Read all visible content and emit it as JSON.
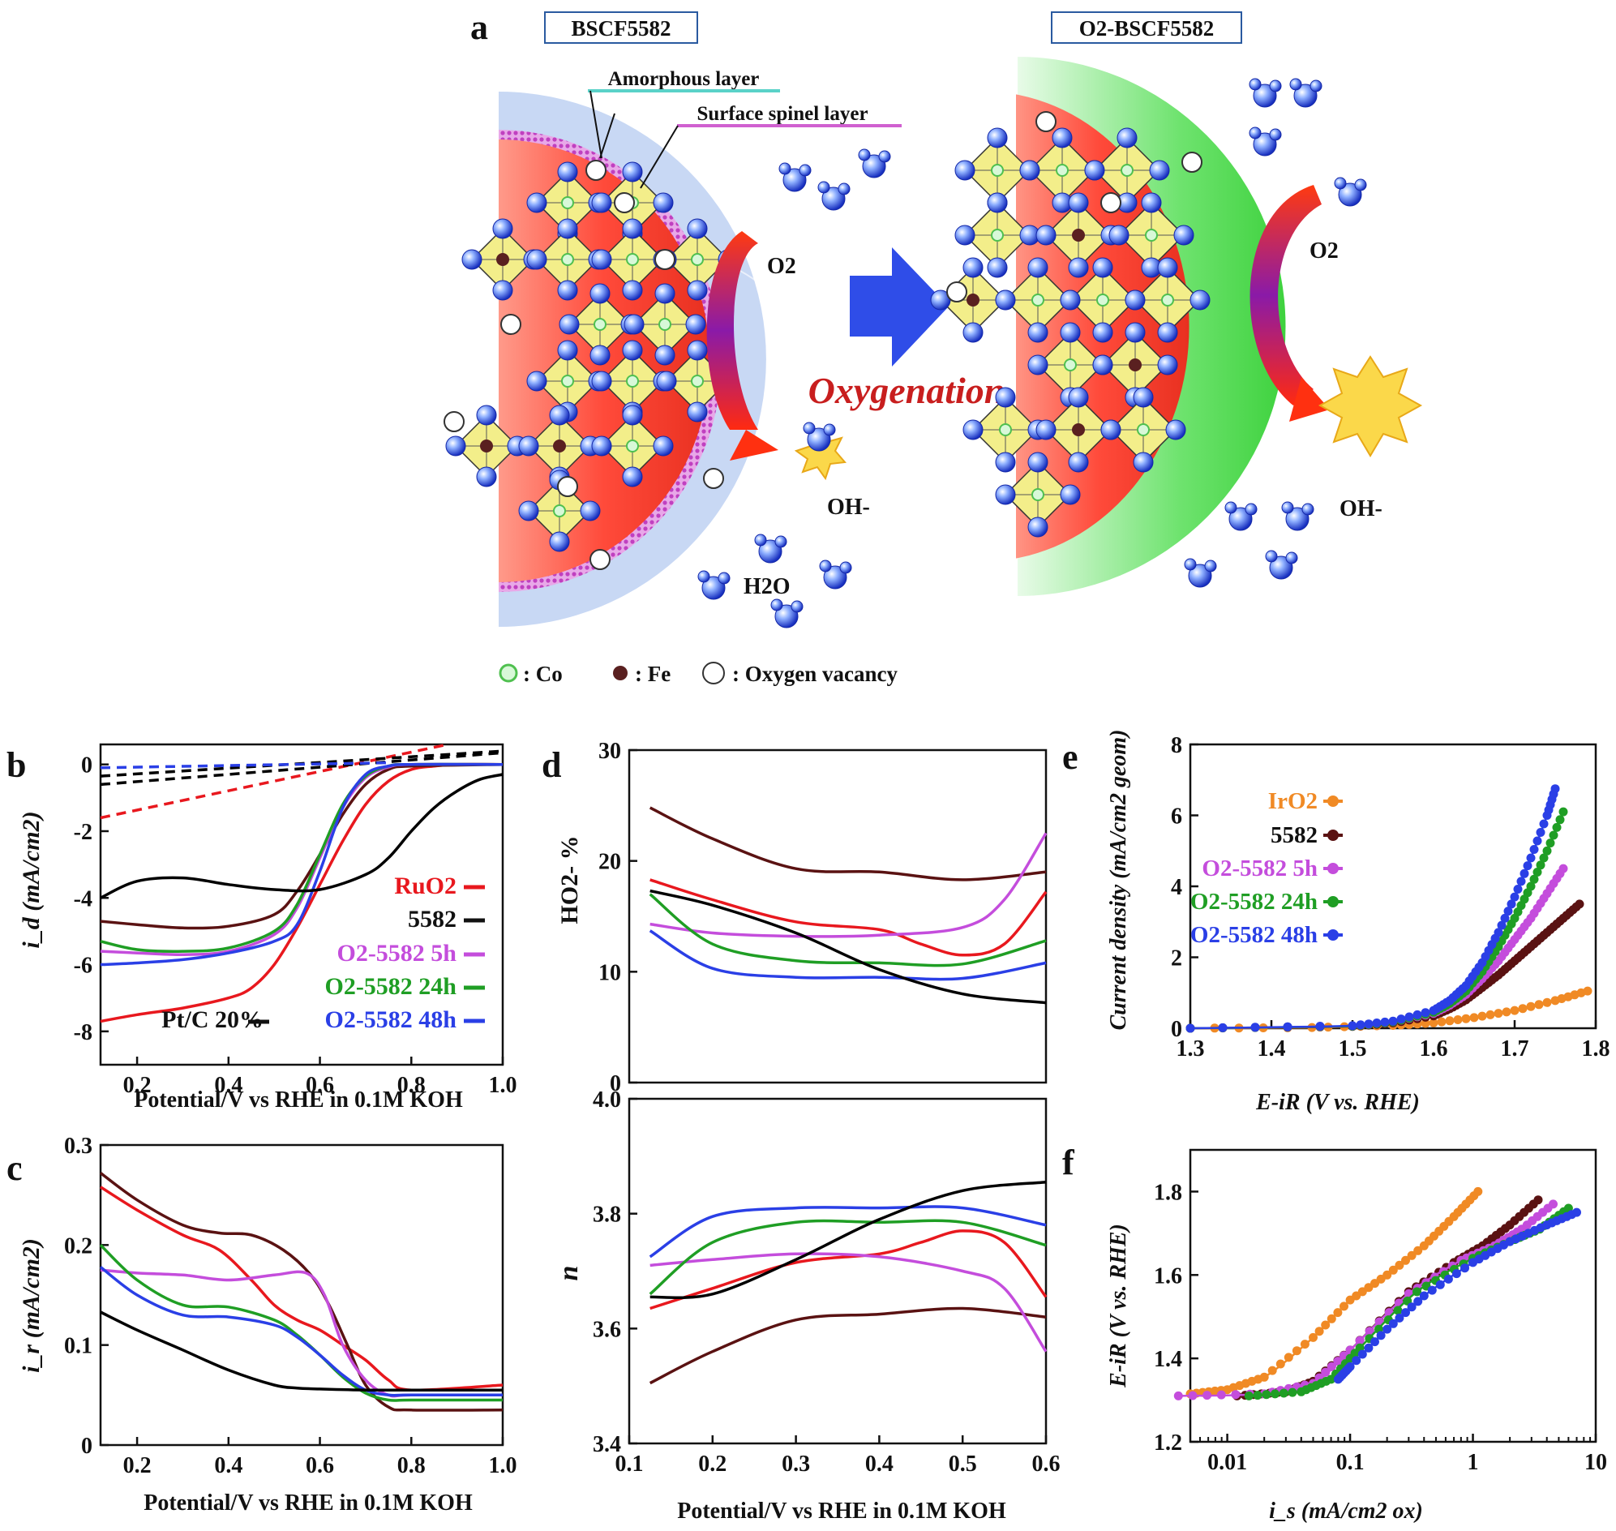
{
  "panel_letters": {
    "a": "a",
    "b": "b",
    "c": "c",
    "d": "d",
    "e": "e",
    "f": "f"
  },
  "schematic": {
    "left_title": "BSCF5582",
    "right_title": "O2-BSCF5582",
    "amorphous_layer": "Amorphous layer",
    "spinel_layer": "Surface spinel layer",
    "arrow_label": "Oxygenation",
    "o2": "O2",
    "oh": "OH-",
    "h2o": "H2O",
    "legend": {
      "co": ": Co",
      "fe": ": Fe",
      "vac": ": Oxygen vacancy"
    }
  },
  "colors": {
    "RuO2": "#e8181e",
    "5582": "#5a1212",
    "O2-5582 5h": "#c44ddc",
    "O2-5582 24h": "#1f9e24",
    "O2-5582 48h": "#2a3fe6",
    "Pt/C 20%": "#000000",
    "IrO2": "#f08a25"
  },
  "chart_data": [
    {
      "id": "b",
      "type": "line",
      "xlabel": "Potential/V vs RHE in 0.1M KOH",
      "ylabel": "i_d (mA/cm2)",
      "xlim": [
        0.12,
        1.0
      ],
      "ylim": [
        -9,
        0.6
      ],
      "xticks": [
        "0.2",
        "0.4",
        "0.6",
        "0.8",
        "1.0"
      ],
      "yticks": [
        "-8",
        "-6",
        "-4",
        "-2",
        "0"
      ],
      "legend": [
        "RuO2",
        "5582",
        "O2-5582 5h",
        "O2-5582 24h",
        "O2-5582 48h",
        "Pt/C 20%"
      ],
      "series": [
        {
          "name": "RuO2",
          "x": [
            0.12,
            0.2,
            0.3,
            0.4,
            0.45,
            0.5,
            0.55,
            0.6,
            0.65,
            0.7,
            0.75,
            0.8,
            0.85,
            0.9,
            1.0
          ],
          "y": [
            -7.7,
            -7.5,
            -7.3,
            -7.0,
            -6.7,
            -6.0,
            -4.9,
            -3.6,
            -2.3,
            -1.2,
            -0.5,
            -0.15,
            -0.05,
            0,
            0
          ]
        },
        {
          "name": "5582",
          "x": [
            0.12,
            0.2,
            0.3,
            0.4,
            0.5,
            0.55,
            0.6,
            0.65,
            0.7,
            0.75,
            0.8,
            1.0
          ],
          "y": [
            -4.7,
            -4.8,
            -4.9,
            -4.85,
            -4.5,
            -3.8,
            -2.7,
            -1.5,
            -0.6,
            -0.15,
            -0.05,
            0
          ]
        },
        {
          "name": "O2-5582 5h",
          "x": [
            0.12,
            0.2,
            0.3,
            0.4,
            0.5,
            0.55,
            0.6,
            0.65,
            0.7,
            0.75,
            0.8,
            1.0
          ],
          "y": [
            -5.6,
            -5.65,
            -5.7,
            -5.6,
            -5.1,
            -4.3,
            -2.8,
            -1.3,
            -0.4,
            -0.08,
            0,
            0
          ]
        },
        {
          "name": "O2-5582 24h",
          "x": [
            0.12,
            0.2,
            0.3,
            0.4,
            0.5,
            0.55,
            0.6,
            0.65,
            0.7,
            0.75,
            0.8,
            1.0
          ],
          "y": [
            -5.3,
            -5.55,
            -5.6,
            -5.5,
            -5.0,
            -4.2,
            -2.7,
            -1.2,
            -0.35,
            -0.05,
            0,
            0
          ]
        },
        {
          "name": "O2-5582 48h",
          "x": [
            0.12,
            0.2,
            0.3,
            0.4,
            0.5,
            0.55,
            0.6,
            0.65,
            0.7,
            0.75,
            0.8,
            1.0
          ],
          "y": [
            -6.0,
            -5.95,
            -5.85,
            -5.65,
            -5.3,
            -4.8,
            -3.2,
            -1.3,
            -0.3,
            -0.05,
            0,
            0
          ]
        },
        {
          "name": "Pt/C 20%",
          "x": [
            0.12,
            0.2,
            0.3,
            0.4,
            0.5,
            0.6,
            0.7,
            0.75,
            0.8,
            0.85,
            0.9,
            0.95,
            1.0
          ],
          "y": [
            -4.0,
            -3.5,
            -3.4,
            -3.6,
            -3.75,
            -3.75,
            -3.3,
            -2.8,
            -2.0,
            -1.3,
            -0.8,
            -0.45,
            -0.3
          ]
        }
      ],
      "dashed": [
        {
          "name": "RuO2",
          "x": [
            0.12,
            0.88
          ],
          "y": [
            -1.6,
            0.6
          ]
        },
        {
          "name": "Pt/C 20%",
          "x": [
            0.12,
            1.0
          ],
          "y": [
            -0.35,
            0.4
          ]
        },
        {
          "name": "Pt/C 20%",
          "x": [
            0.12,
            1.0
          ],
          "y": [
            -0.6,
            0.35
          ]
        },
        {
          "name": "O2-5582 48h",
          "x": [
            0.12,
            0.75
          ],
          "y": [
            -0.1,
            0.05
          ]
        }
      ]
    },
    {
      "id": "c",
      "type": "line",
      "xlabel": "Potential/V vs RHE in 0.1M KOH",
      "ylabel": "i_r (mA/cm2)",
      "xlim": [
        0.12,
        1.0
      ],
      "ylim": [
        0,
        0.3
      ],
      "xticks": [
        "0.2",
        "0.4",
        "0.6",
        "0.8",
        "1.0"
      ],
      "yticks": [
        "0",
        "0.1",
        "0.2",
        "0.3"
      ],
      "series": [
        {
          "name": "RuO2",
          "x": [
            0.12,
            0.2,
            0.3,
            0.38,
            0.45,
            0.5,
            0.55,
            0.6,
            0.65,
            0.7,
            0.75,
            0.8,
            1.0
          ],
          "y": [
            0.258,
            0.235,
            0.21,
            0.195,
            0.165,
            0.14,
            0.125,
            0.115,
            0.1,
            0.085,
            0.065,
            0.055,
            0.06
          ]
        },
        {
          "name": "5582",
          "x": [
            0.12,
            0.2,
            0.3,
            0.38,
            0.45,
            0.52,
            0.58,
            0.62,
            0.66,
            0.7,
            0.75,
            0.8,
            1.0
          ],
          "y": [
            0.272,
            0.245,
            0.22,
            0.212,
            0.21,
            0.195,
            0.17,
            0.14,
            0.1,
            0.06,
            0.038,
            0.035,
            0.035
          ]
        },
        {
          "name": "O2-5582 5h",
          "x": [
            0.12,
            0.2,
            0.3,
            0.4,
            0.5,
            0.57,
            0.61,
            0.65,
            0.7,
            0.75,
            0.8,
            1.0
          ],
          "y": [
            0.175,
            0.172,
            0.17,
            0.165,
            0.17,
            0.172,
            0.15,
            0.1,
            0.065,
            0.05,
            0.05,
            0.05
          ]
        },
        {
          "name": "O2-5582 24h",
          "x": [
            0.12,
            0.2,
            0.3,
            0.4,
            0.5,
            0.55,
            0.6,
            0.65,
            0.7,
            0.75,
            0.8,
            1.0
          ],
          "y": [
            0.2,
            0.165,
            0.14,
            0.138,
            0.125,
            0.11,
            0.09,
            0.068,
            0.052,
            0.045,
            0.045,
            0.045
          ]
        },
        {
          "name": "O2-5582 48h",
          "x": [
            0.12,
            0.2,
            0.3,
            0.4,
            0.5,
            0.55,
            0.6,
            0.65,
            0.7,
            0.75,
            0.8,
            1.0
          ],
          "y": [
            0.178,
            0.15,
            0.13,
            0.128,
            0.12,
            0.108,
            0.09,
            0.07,
            0.055,
            0.05,
            0.05,
            0.05
          ]
        },
        {
          "name": "Pt/C 20%",
          "x": [
            0.12,
            0.2,
            0.3,
            0.4,
            0.5,
            0.55,
            0.6,
            0.7,
            0.8,
            1.0
          ],
          "y": [
            0.133,
            0.115,
            0.095,
            0.075,
            0.06,
            0.057,
            0.056,
            0.055,
            0.055,
            0.055
          ]
        }
      ]
    },
    {
      "id": "d-top",
      "type": "line",
      "xlabel": "",
      "ylabel": "HO2- %",
      "xlim": [
        0.1,
        0.6
      ],
      "ylim": [
        0,
        30
      ],
      "yticks": [
        "0",
        "10",
        "20",
        "30"
      ],
      "series": [
        {
          "name": "RuO2",
          "x": [
            0.125,
            0.2,
            0.3,
            0.4,
            0.45,
            0.5,
            0.55,
            0.6
          ],
          "y": [
            18.3,
            16.5,
            14.5,
            13.8,
            12.5,
            11.5,
            12.5,
            17.2
          ]
        },
        {
          "name": "5582",
          "x": [
            0.125,
            0.2,
            0.3,
            0.4,
            0.5,
            0.6
          ],
          "y": [
            24.8,
            22.0,
            19.3,
            19.0,
            18.3,
            19.0
          ]
        },
        {
          "name": "O2-5582 5h",
          "x": [
            0.125,
            0.2,
            0.3,
            0.4,
            0.5,
            0.55,
            0.6
          ],
          "y": [
            14.3,
            13.5,
            13.2,
            13.3,
            14.0,
            16.5,
            22.5
          ]
        },
        {
          "name": "O2-5582 24h",
          "x": [
            0.125,
            0.2,
            0.3,
            0.4,
            0.5,
            0.6
          ],
          "y": [
            17.0,
            12.5,
            11.0,
            10.8,
            10.7,
            12.8
          ]
        },
        {
          "name": "O2-5582 48h",
          "x": [
            0.125,
            0.2,
            0.3,
            0.4,
            0.5,
            0.6
          ],
          "y": [
            13.7,
            10.3,
            9.5,
            9.5,
            9.4,
            10.8
          ]
        },
        {
          "name": "Pt/C 20%",
          "x": [
            0.125,
            0.2,
            0.3,
            0.4,
            0.5,
            0.6
          ],
          "y": [
            17.3,
            16.0,
            13.5,
            10.2,
            8.0,
            7.2
          ]
        }
      ]
    },
    {
      "id": "d-bottom",
      "type": "line",
      "xlabel": "Potential/V vs RHE in 0.1M KOH",
      "ylabel": "n",
      "xlim": [
        0.1,
        0.6
      ],
      "ylim": [
        3.4,
        4.0
      ],
      "xticks": [
        "0.1",
        "0.2",
        "0.3",
        "0.4",
        "0.5",
        "0.6"
      ],
      "yticks": [
        "3.4",
        "3.6",
        "3.8",
        "4.0"
      ],
      "series": [
        {
          "name": "RuO2",
          "x": [
            0.125,
            0.2,
            0.3,
            0.4,
            0.45,
            0.5,
            0.55,
            0.6
          ],
          "y": [
            3.635,
            3.67,
            3.715,
            3.73,
            3.75,
            3.77,
            3.75,
            3.655
          ]
        },
        {
          "name": "5582",
          "x": [
            0.125,
            0.2,
            0.3,
            0.4,
            0.5,
            0.6
          ],
          "y": [
            3.505,
            3.56,
            3.615,
            3.625,
            3.635,
            3.62
          ]
        },
        {
          "name": "O2-5582 5h",
          "x": [
            0.125,
            0.2,
            0.3,
            0.4,
            0.5,
            0.55,
            0.6
          ],
          "y": [
            3.71,
            3.72,
            3.73,
            3.725,
            3.7,
            3.67,
            3.56
          ]
        },
        {
          "name": "O2-5582 24h",
          "x": [
            0.125,
            0.2,
            0.3,
            0.4,
            0.5,
            0.6
          ],
          "y": [
            3.66,
            3.75,
            3.785,
            3.785,
            3.785,
            3.745
          ]
        },
        {
          "name": "O2-5582 48h",
          "x": [
            0.125,
            0.2,
            0.3,
            0.4,
            0.5,
            0.6
          ],
          "y": [
            3.725,
            3.795,
            3.81,
            3.81,
            3.81,
            3.78
          ]
        },
        {
          "name": "Pt/C 20%",
          "x": [
            0.125,
            0.2,
            0.3,
            0.4,
            0.5,
            0.6
          ],
          "y": [
            3.655,
            3.66,
            3.72,
            3.79,
            3.84,
            3.855
          ]
        }
      ]
    },
    {
      "id": "e",
      "type": "scatter",
      "xlabel": "E-iR (V vs. RHE)",
      "ylabel": "Current density (mA/cm2 geom)",
      "xlim": [
        1.3,
        1.8
      ],
      "ylim": [
        0,
        8
      ],
      "xticks": [
        "1.3",
        "1.4",
        "1.5",
        "1.6",
        "1.7",
        "1.8"
      ],
      "yticks": [
        "0",
        "2",
        "4",
        "6",
        "8"
      ],
      "legend": [
        "IrO2",
        "5582",
        "O2-5582 5h",
        "O2-5582 24h",
        "O2-5582 48h"
      ],
      "series": [
        {
          "name": "IrO2",
          "x": [
            1.3,
            1.45,
            1.55,
            1.6,
            1.65,
            1.7,
            1.75,
            1.79
          ],
          "y": [
            0,
            0.02,
            0.08,
            0.15,
            0.3,
            0.5,
            0.78,
            1.05
          ]
        },
        {
          "name": "5582",
          "x": [
            1.3,
            1.5,
            1.55,
            1.6,
            1.62,
            1.64,
            1.66,
            1.68,
            1.7,
            1.72,
            1.74,
            1.76,
            1.78
          ],
          "y": [
            0,
            0.05,
            0.15,
            0.35,
            0.55,
            0.8,
            1.15,
            1.5,
            1.9,
            2.3,
            2.7,
            3.1,
            3.5
          ]
        },
        {
          "name": "O2-5582 5h",
          "x": [
            1.3,
            1.5,
            1.55,
            1.6,
            1.62,
            1.64,
            1.66,
            1.68,
            1.7,
            1.72,
            1.74,
            1.76
          ],
          "y": [
            0,
            0.06,
            0.18,
            0.42,
            0.65,
            0.95,
            1.4,
            1.9,
            2.5,
            3.1,
            3.8,
            4.5
          ]
        },
        {
          "name": "O2-5582 24h",
          "x": [
            1.3,
            1.5,
            1.55,
            1.6,
            1.62,
            1.64,
            1.66,
            1.68,
            1.7,
            1.72,
            1.74,
            1.76
          ],
          "y": [
            0,
            0.06,
            0.18,
            0.45,
            0.7,
            1.05,
            1.6,
            2.3,
            3.1,
            4.0,
            5.0,
            6.1
          ]
        },
        {
          "name": "O2-5582 48h",
          "x": [
            1.3,
            1.5,
            1.55,
            1.6,
            1.62,
            1.64,
            1.66,
            1.68,
            1.7,
            1.72,
            1.74,
            1.75
          ],
          "y": [
            0,
            0.07,
            0.2,
            0.5,
            0.78,
            1.2,
            1.85,
            2.7,
            3.7,
            4.8,
            6.0,
            6.75
          ]
        }
      ]
    },
    {
      "id": "f",
      "type": "scatter",
      "xscale": "log",
      "xlabel": "i_s (mA/cm2 ox)",
      "ylabel": "E-iR (V vs. RHE)",
      "xlim": [
        0.005,
        10
      ],
      "ylim": [
        1.2,
        1.9
      ],
      "xticks": [
        "0.01",
        "0.1",
        "1",
        "10"
      ],
      "yticks": [
        "1.2",
        "1.4",
        "1.6",
        "1.8"
      ],
      "series": [
        {
          "name": "IrO2",
          "x": [
            0.005,
            0.01,
            0.02,
            0.05,
            0.1,
            0.2,
            0.4,
            0.7,
            1.1
          ],
          "y": [
            1.315,
            1.325,
            1.355,
            1.45,
            1.54,
            1.6,
            1.67,
            1.74,
            1.8
          ]
        },
        {
          "name": "5582",
          "x": [
            0.012,
            0.03,
            0.05,
            0.1,
            0.3,
            0.7,
            1.2,
            2.0,
            3.4
          ],
          "y": [
            1.31,
            1.32,
            1.345,
            1.42,
            1.56,
            1.63,
            1.67,
            1.72,
            1.78
          ]
        },
        {
          "name": "O2-5582 5h",
          "x": [
            0.004,
            0.02,
            0.05,
            0.1,
            0.3,
            0.8,
            1.5,
            2.5,
            4.5
          ],
          "y": [
            1.31,
            1.315,
            1.34,
            1.42,
            1.555,
            1.635,
            1.67,
            1.71,
            1.77
          ]
        },
        {
          "name": "O2-5582 24h",
          "x": [
            0.015,
            0.04,
            0.07,
            0.12,
            0.35,
            1.0,
            2.0,
            3.5,
            6.0
          ],
          "y": [
            1.31,
            1.32,
            1.35,
            1.425,
            1.56,
            1.64,
            1.68,
            1.71,
            1.76
          ]
        },
        {
          "name": "O2-5582 48h",
          "x": [
            0.08,
            0.1,
            0.2,
            0.4,
            1.0,
            2.0,
            4.0,
            7.0
          ],
          "y": [
            1.35,
            1.38,
            1.47,
            1.55,
            1.63,
            1.68,
            1.72,
            1.75
          ]
        }
      ]
    }
  ]
}
